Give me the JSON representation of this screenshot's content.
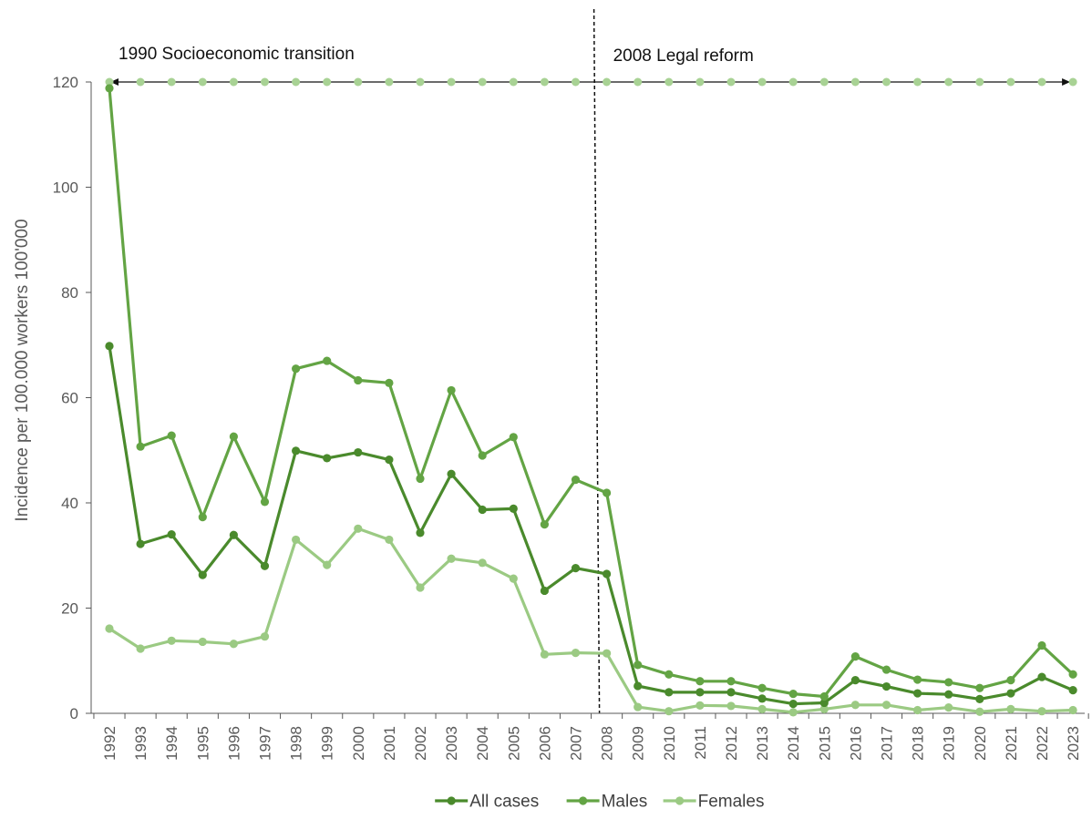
{
  "chart_data": {
    "type": "line",
    "title": "",
    "xlabel": "",
    "ylabel": "Incidence per 100.000 workers 100'000",
    "ylim": [
      0,
      120
    ],
    "yticks": [
      0,
      20,
      40,
      60,
      80,
      100,
      120
    ],
    "grid": false,
    "legend_position": "bottom",
    "x": [
      "1992",
      "1993",
      "1994",
      "1995",
      "1996",
      "1997",
      "1998",
      "1999",
      "2000",
      "2001",
      "2002",
      "2003",
      "2004",
      "2005",
      "2006",
      "2007",
      "2008",
      "2009",
      "2010",
      "2011",
      "2012",
      "2013",
      "2014",
      "2015",
      "2016",
      "2017",
      "2018",
      "2019",
      "2020",
      "2021",
      "2022",
      "2023"
    ],
    "series": [
      {
        "name": "All cases",
        "color": "#4a8a2c",
        "values": [
          69.8,
          32.2,
          34.0,
          26.3,
          33.9,
          28.0,
          49.9,
          48.5,
          49.6,
          48.2,
          34.3,
          45.5,
          38.7,
          38.9,
          23.3,
          27.6,
          26.5,
          5.2,
          4.0,
          4.0,
          4.0,
          2.8,
          1.8,
          2.0,
          6.3,
          5.1,
          3.8,
          3.6,
          2.7,
          3.8,
          6.9,
          4.4
        ]
      },
      {
        "name": "Males",
        "color": "#63a444",
        "values": [
          118.8,
          50.7,
          52.8,
          37.3,
          52.6,
          40.2,
          65.5,
          67.0,
          63.3,
          62.8,
          44.6,
          61.4,
          49.0,
          52.5,
          35.9,
          44.4,
          41.9,
          9.2,
          7.4,
          6.1,
          6.1,
          4.8,
          3.7,
          3.2,
          10.8,
          8.3,
          6.4,
          5.9,
          4.8,
          6.3,
          12.9,
          7.4
        ]
      },
      {
        "name": "Females",
        "color": "#9bca83",
        "values": [
          16.1,
          12.3,
          13.8,
          13.6,
          13.2,
          14.6,
          33.0,
          28.2,
          35.1,
          33.0,
          23.9,
          29.4,
          28.6,
          25.6,
          11.2,
          11.5,
          11.4,
          1.2,
          0.4,
          1.5,
          1.4,
          0.8,
          0.2,
          0.8,
          1.6,
          1.6,
          0.6,
          1.1,
          0.3,
          0.8,
          0.4,
          0.6
        ]
      }
    ],
    "reference_series": {
      "color": "#a8d294",
      "value": 120
    },
    "annotations": [
      {
        "id": "transition",
        "text": "1990 Socioeconomic transition",
        "start": "1992",
        "end": "2023"
      },
      {
        "id": "reform",
        "text": "2008 Legal reform",
        "at": "2008"
      }
    ]
  }
}
